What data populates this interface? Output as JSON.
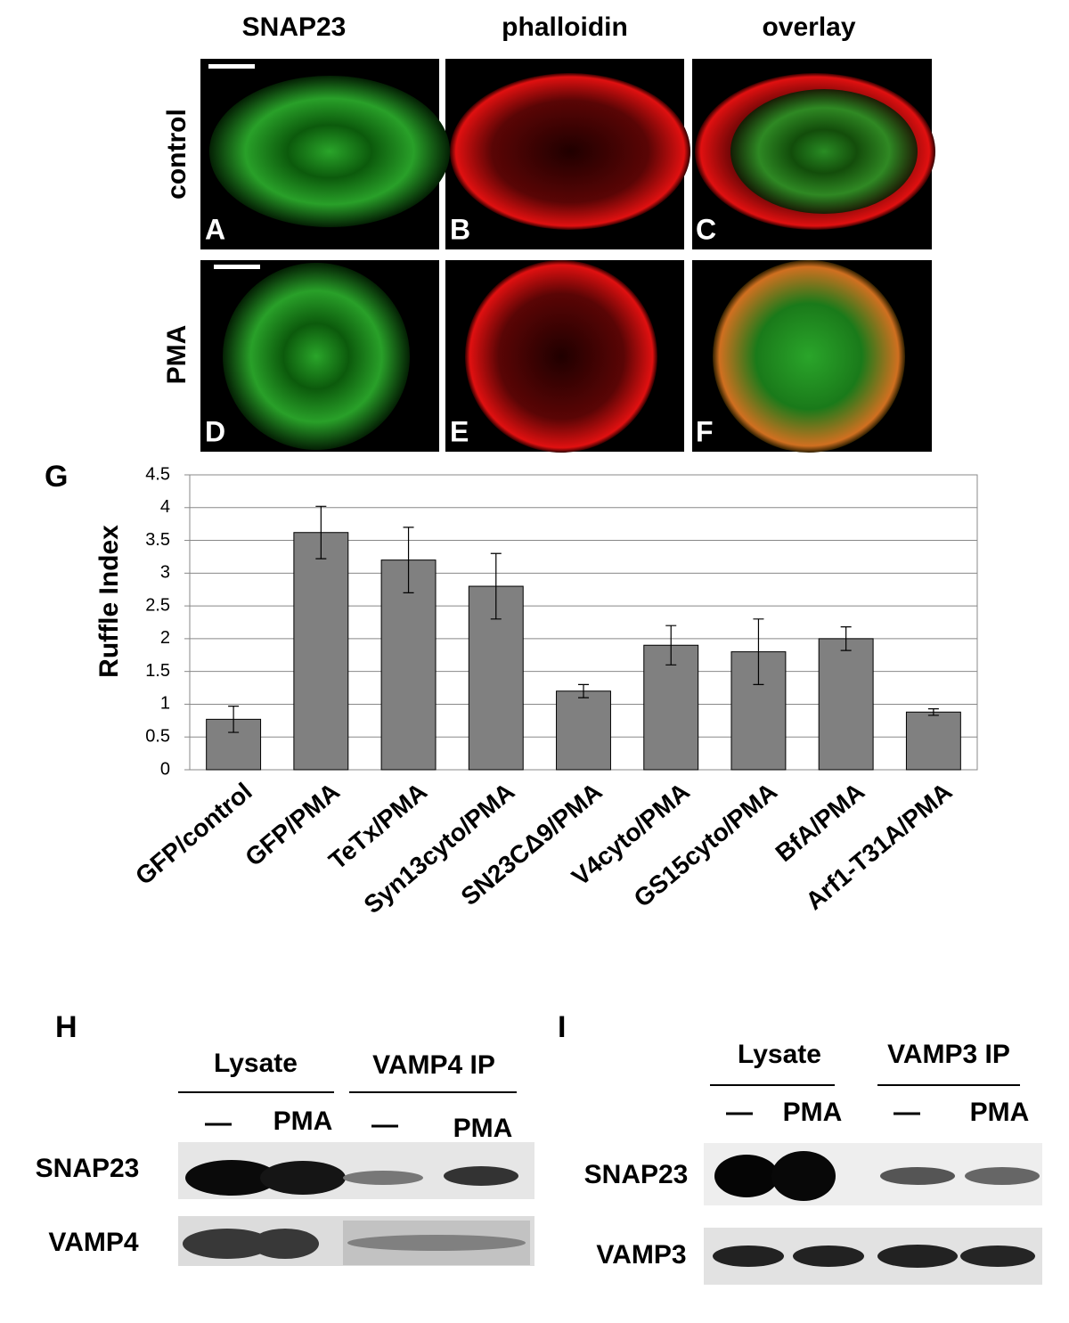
{
  "panels": {
    "columns": [
      "SNAP23",
      "phalloidin",
      "overlay"
    ],
    "rows": [
      "control",
      "PMA"
    ],
    "letters": [
      "A",
      "B",
      "C",
      "D",
      "E",
      "F"
    ]
  },
  "chart_data": {
    "type": "bar",
    "label": "G",
    "ylabel": "Ruffle Index",
    "categories": [
      "GFP/control",
      "GFP/PMA",
      "TeTx/PMA",
      "Syn13cyto/PMA",
      "SN23CΔ9/PMA",
      "V4cyto/PMA",
      "GS15cyto/PMA",
      "BfA/PMA",
      "Arf1-T31A/PMA"
    ],
    "values": [
      0.77,
      3.62,
      3.2,
      2.8,
      1.2,
      1.9,
      1.8,
      2.0,
      0.88
    ],
    "errors": [
      0.2,
      0.4,
      0.5,
      0.5,
      0.1,
      0.3,
      0.5,
      0.18,
      0.05
    ],
    "color": "#808080",
    "ylim": [
      0,
      4.5
    ],
    "yticks": [
      0,
      0.5,
      1,
      1.5,
      2,
      2.5,
      3,
      3.5,
      4,
      4.5
    ],
    "grid": true
  },
  "blot_h": {
    "label": "H",
    "groups": [
      "Lysate",
      "VAMP4 IP"
    ],
    "lanes": [
      "—",
      "PMA",
      "—",
      "PMA"
    ],
    "rows": [
      "SNAP23",
      "VAMP4"
    ]
  },
  "blot_i": {
    "label": "I",
    "groups": [
      "Lysate",
      "VAMP3 IP"
    ],
    "lanes": [
      "—",
      "PMA",
      "—",
      "PMA"
    ],
    "rows": [
      "SNAP23",
      "VAMP3"
    ]
  }
}
